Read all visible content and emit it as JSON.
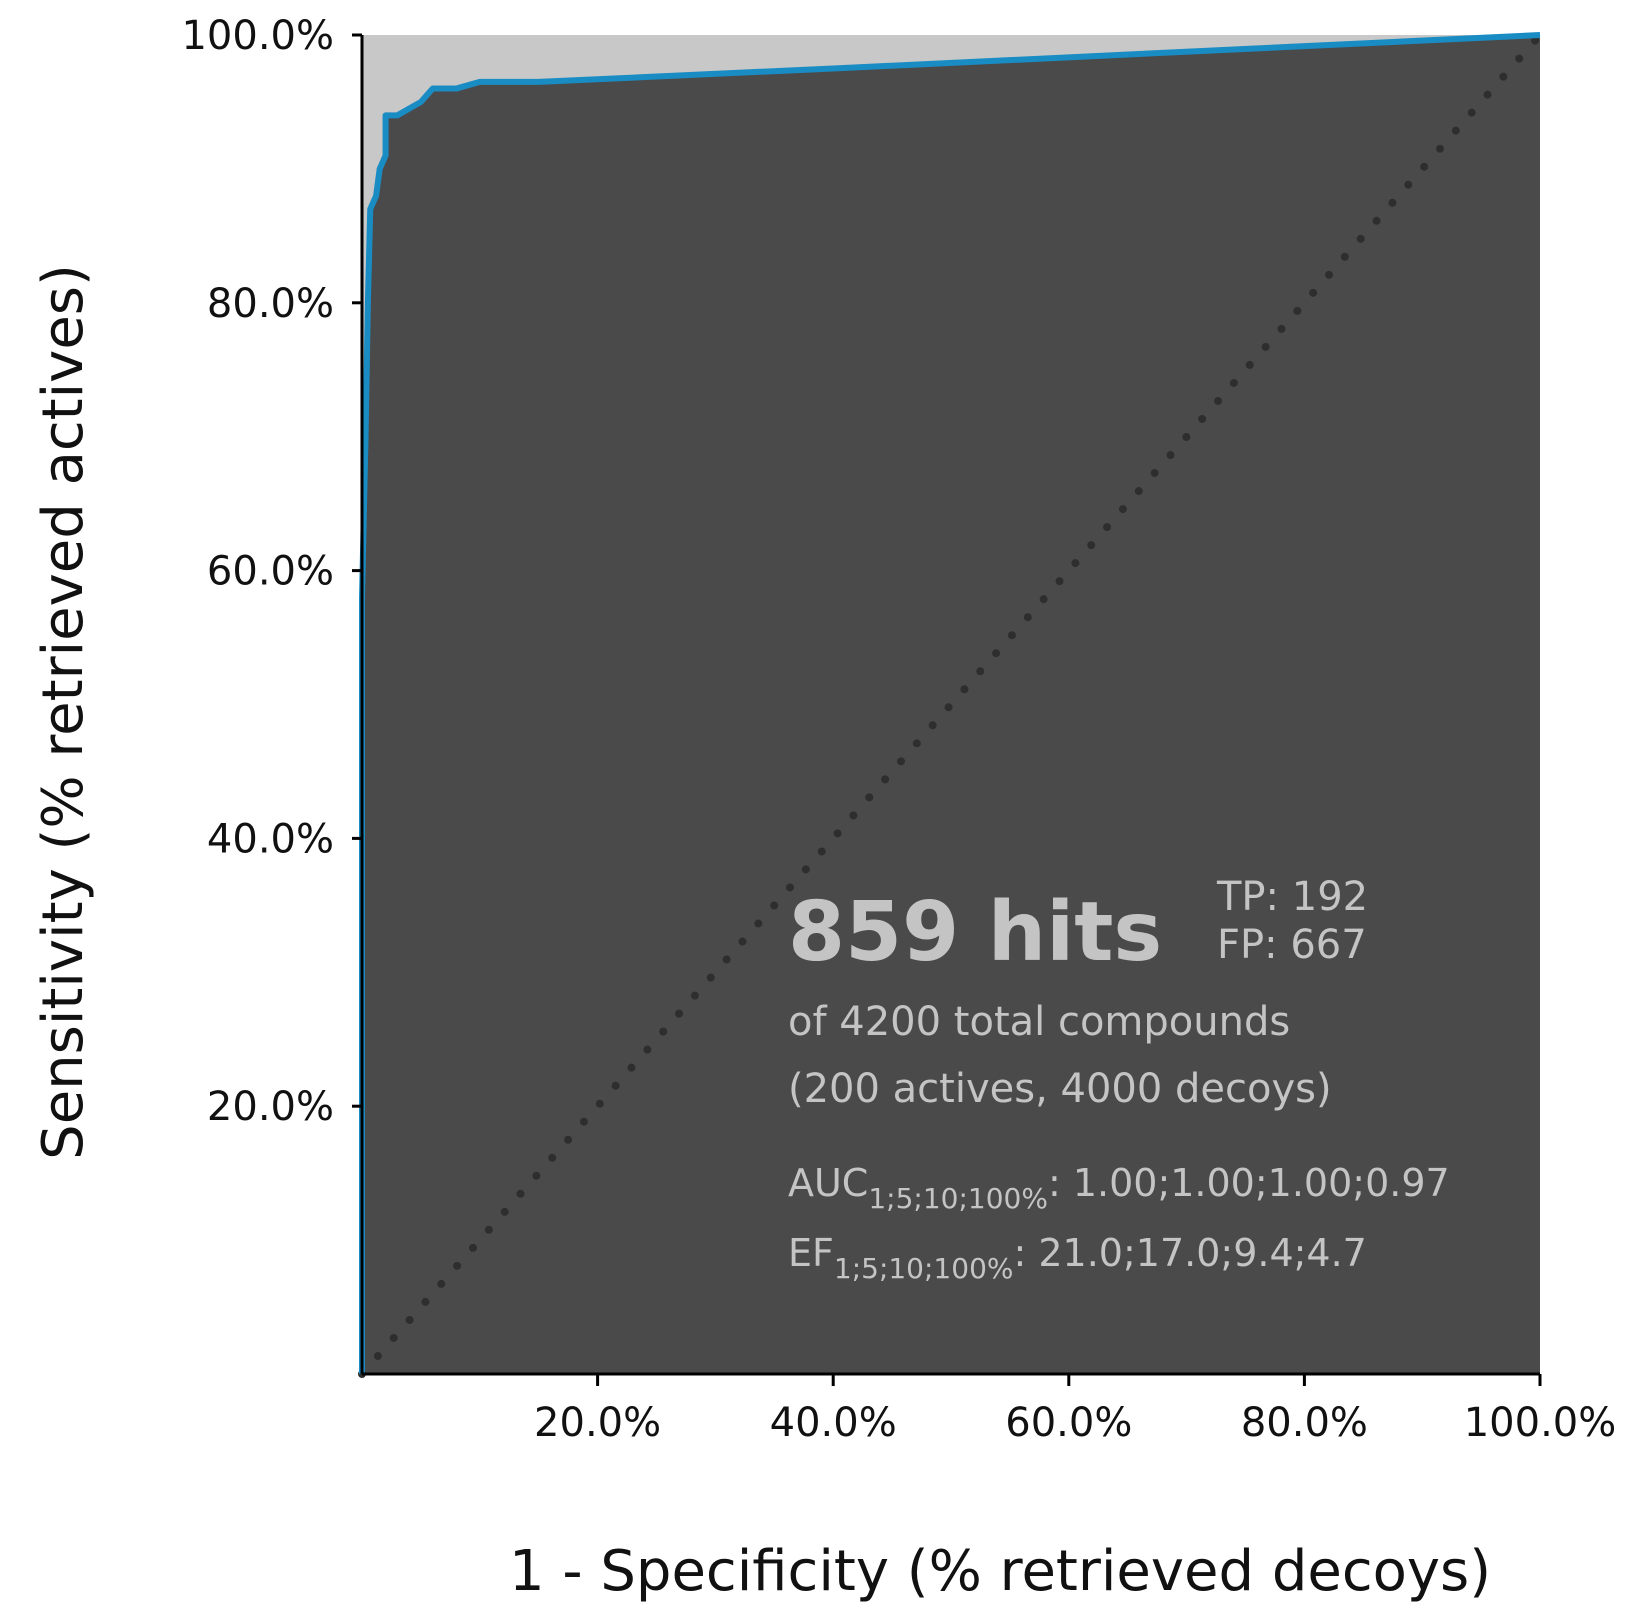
{
  "chart_data": {
    "type": "line",
    "x_label": "1 - Specificity (% retrieved decoys)",
    "y_label": "Sensitivity (% retrieved actives)",
    "x": [
      0,
      0,
      0.3,
      0.5,
      0.7,
      1.2,
      1.5,
      2,
      2,
      3,
      4,
      5,
      5.5,
      6,
      8,
      10,
      15,
      40,
      100
    ],
    "values": [
      0,
      58,
      70,
      80,
      87,
      88,
      90,
      91,
      94,
      94,
      94.5,
      95,
      95.5,
      96,
      96,
      96.5,
      96.5,
      97.5,
      100
    ],
    "color": "#1a8cc4",
    "xlim": [
      0,
      100
    ],
    "ylim": [
      0,
      100
    ],
    "xticks": [
      {
        "value": 20,
        "label": "20.0%"
      },
      {
        "value": 40,
        "label": "40.0%"
      },
      {
        "value": 60,
        "label": "60.0%"
      },
      {
        "value": 80,
        "label": "80.0%"
      },
      {
        "value": 100,
        "label": "100.0%"
      }
    ],
    "yticks": [
      {
        "value": 20,
        "label": "20.0%"
      },
      {
        "value": 40,
        "label": "40.0%"
      },
      {
        "value": 60,
        "label": "60.0%"
      },
      {
        "value": 80,
        "label": "80.0%"
      },
      {
        "value": 100,
        "label": "100.0%"
      }
    ],
    "annotations": {
      "hits": "859 hits",
      "tp": "TP: 192",
      "fp": "FP: 667",
      "total": "of 4200 total compounds",
      "composition": "(200 actives, 4000 decoys)",
      "auc_label": "AUC",
      "auc_sub": "1;5;10;100%",
      "auc_values": ": 1.00;1.00;1.00;0.97",
      "ef_label": "EF",
      "ef_sub": "1;5;10;100%",
      "ef_values": ": 21.0;17.0;9.4;4.7"
    }
  }
}
